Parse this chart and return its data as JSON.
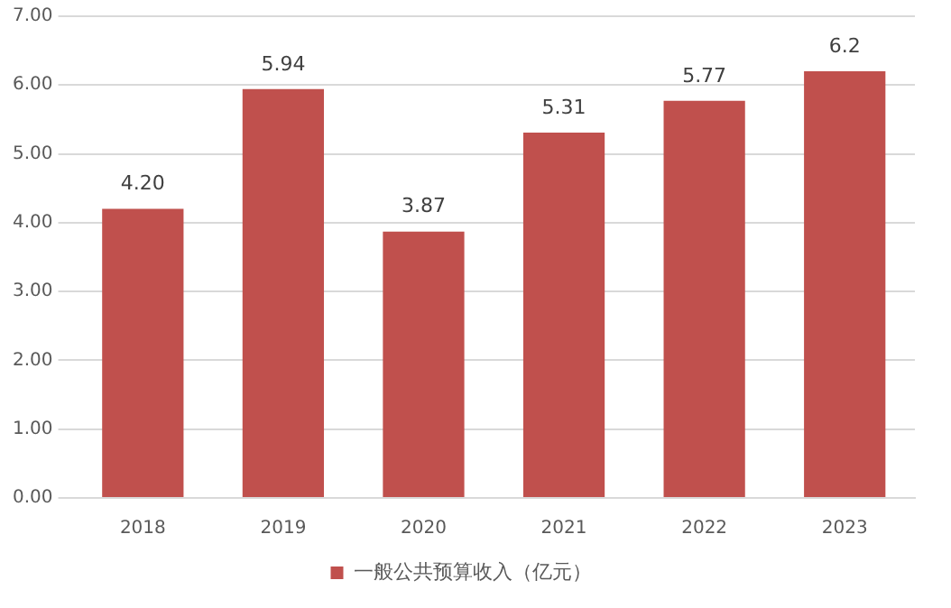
{
  "chart_data": {
    "type": "bar",
    "categories": [
      "2018",
      "2019",
      "2020",
      "2021",
      "2022",
      "2023"
    ],
    "series": [
      {
        "name": "一般公共预算收入（亿元）",
        "color": "#c0504d",
        "values": [
          4.2,
          5.94,
          3.87,
          5.31,
          5.77,
          6.2
        ],
        "value_labels": [
          "4.20",
          "5.94",
          "3.87",
          "5.31",
          "5.77",
          "6.2"
        ]
      }
    ],
    "ylim": [
      0,
      7
    ],
    "yticks": [
      {
        "value": 0,
        "label": "0.00"
      },
      {
        "value": 1,
        "label": "1.00"
      },
      {
        "value": 2,
        "label": "2.00"
      },
      {
        "value": 3,
        "label": "3.00"
      },
      {
        "value": 4,
        "label": "4.00"
      },
      {
        "value": 5,
        "label": "5.00"
      },
      {
        "value": 6,
        "label": "6.00"
      },
      {
        "value": 7,
        "label": "7.00"
      }
    ],
    "grid": "y",
    "legend": "bottom"
  }
}
